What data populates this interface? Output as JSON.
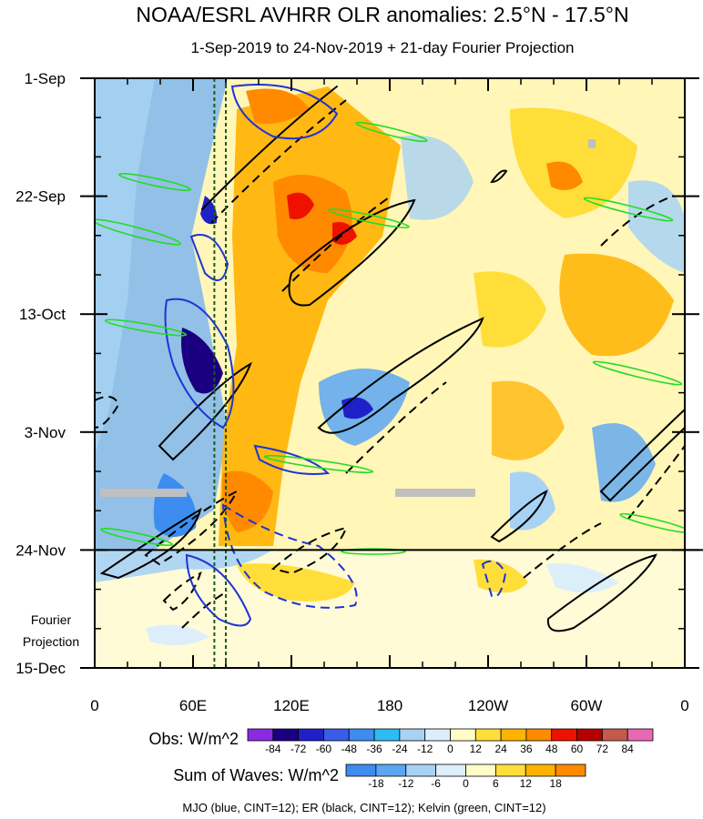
{
  "header": {
    "title": "NOAA/ESRL AVHRR OLR anomalies: 2.5°N - 17.5°N",
    "subtitle": "1-Sep-2019 to 24-Nov-2019 + 21-day Fourier Projection"
  },
  "side_label": {
    "line1": "Fourier",
    "line2": "Projection"
  },
  "footer": "MJO (blue, CINT=12); ER (black, CINT=12); Kelvin (green, CINT=12)",
  "chart_data": {
    "type": "heatmap",
    "title": "NOAA/ESRL AVHRR OLR anomalies: 2.5°N - 17.5°N",
    "subtitle": "1-Sep-2019 to 24-Nov-2019 + 21-day Fourier Projection",
    "x_ticks": [
      "0",
      "60E",
      "120E",
      "180",
      "120W",
      "60W",
      "0"
    ],
    "x_tick_values": [
      0,
      60,
      120,
      180,
      240,
      300,
      360
    ],
    "xlim": [
      0,
      360
    ],
    "y_ticks": [
      "1-Sep",
      "22-Sep",
      "13-Oct",
      "3-Nov",
      "24-Nov",
      "15-Dec"
    ],
    "y_tick_values": [
      0,
      21,
      42,
      63,
      84,
      105
    ],
    "ylim": [
      0,
      105
    ],
    "observed_end_day": 84,
    "projection_line_day": 84,
    "reference_lines_x": [
      73,
      80
    ],
    "colorbars": [
      {
        "title": "Obs: W/m^2",
        "labels": [
          "-84",
          "-72",
          "-60",
          "-48",
          "-36",
          "-24",
          "-12",
          "0",
          "12",
          "24",
          "36",
          "48",
          "60",
          "72",
          "84"
        ],
        "colors": [
          "#8a2be2",
          "#1a0080",
          "#2020c8",
          "#3a5de8",
          "#3d8df0",
          "#2ebcf2",
          "#a8d2f4",
          "#dceefa",
          "#fffcc8",
          "#ffde3a",
          "#ffb300",
          "#ff8a00",
          "#ee1100",
          "#b40000",
          "#c55a4c",
          "#e868b4"
        ]
      },
      {
        "title": "Sum of Waves: W/m^2",
        "labels": [
          "-18",
          "-12",
          "-6",
          "0",
          "6",
          "12",
          "18"
        ],
        "colors": [
          "#3d8df0",
          "#5aa6f2",
          "#a8d2f4",
          "#dceefa",
          "#fffcc8",
          "#ffde3a",
          "#ffb300",
          "#ff8a00"
        ]
      }
    ],
    "wave_contours": [
      {
        "name": "MJO",
        "color": "blue",
        "cint": 12
      },
      {
        "name": "ER",
        "color": "black",
        "cint": 12
      },
      {
        "name": "Kelvin",
        "color": "green",
        "cint": 12
      }
    ],
    "hovmoller_colors": {
      "deep_neg": "#1a0080",
      "neg": "#3d8df0",
      "light_neg": "#a8d2f4",
      "light_pos": "#fffcc8",
      "pos": "#ffde3a",
      "mid_pos": "#ffb300",
      "strong_pos": "#ff8a00",
      "hot": "#ee1100"
    }
  }
}
